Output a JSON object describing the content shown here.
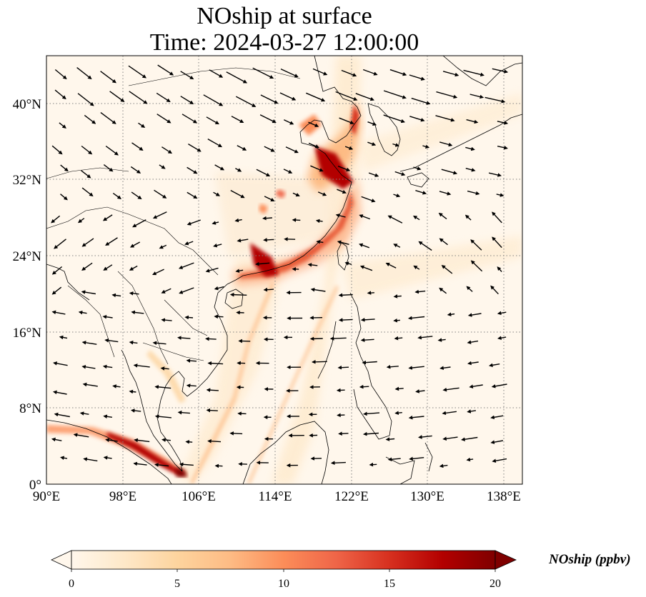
{
  "title": {
    "line1": "NOship at surface",
    "line2": "Time: 2024-03-27 12:00:00"
  },
  "map": {
    "lon_range": [
      90,
      141
    ],
    "lat_range": [
      0,
      45
    ],
    "lon_ticks": [
      "90°E",
      "98°E",
      "106°E",
      "114°E",
      "122°E",
      "130°E",
      "138°E"
    ],
    "lat_ticks": [
      "0°",
      "8°N",
      "16°N",
      "24°N",
      "32°N",
      "40°N"
    ],
    "gridlines": true,
    "field": "NOship",
    "wind_vectors": true
  },
  "colorbar": {
    "label": "NOship (ppbv)",
    "ticks": [
      "0",
      "5",
      "10",
      "15",
      "20"
    ],
    "range": [
      0,
      20
    ],
    "colormap": "OrRd",
    "extend": "both",
    "colors": [
      "#fff7ec",
      "#fee8c8",
      "#fdd49e",
      "#fdbb84",
      "#fc8d59",
      "#ef6548",
      "#d7301f",
      "#b30000",
      "#7f0000"
    ]
  }
}
